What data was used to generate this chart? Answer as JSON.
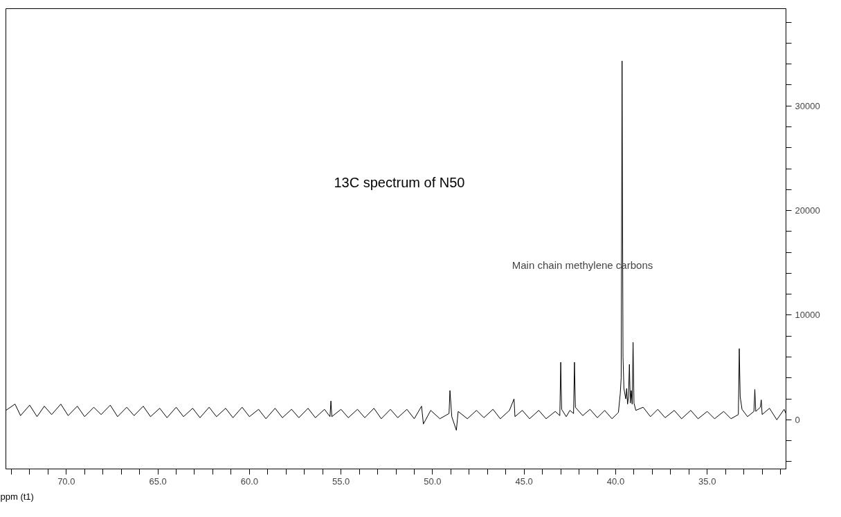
{
  "chart_data": {
    "type": "line",
    "title": "13C spectrum of N50",
    "xlabel": "ppm (t1)",
    "annotations": [
      "Main chain methylene carbons"
    ],
    "x": [
      73.3,
      72.8,
      72.5,
      72.0,
      71.6,
      71.2,
      70.8,
      70.3,
      69.9,
      69.4,
      69.0,
      68.5,
      68.1,
      67.6,
      67.2,
      66.7,
      66.3,
      65.8,
      65.4,
      64.9,
      64.5,
      64.0,
      63.6,
      63.1,
      62.7,
      62.2,
      61.8,
      61.3,
      60.9,
      60.4,
      60.0,
      59.5,
      59.1,
      58.6,
      58.2,
      57.7,
      57.3,
      56.8,
      56.4,
      55.9,
      55.6,
      55.55,
      55.5,
      55.0,
      54.6,
      54.1,
      53.7,
      53.2,
      52.8,
      52.3,
      51.9,
      51.4,
      51.0,
      50.6,
      50.5,
      50.1,
      49.6,
      49.1,
      49.05,
      48.95,
      48.7,
      48.6,
      48.1,
      47.6,
      47.2,
      46.7,
      46.3,
      45.8,
      45.55,
      45.5,
      45.1,
      44.7,
      44.2,
      43.8,
      43.3,
      43.05,
      43.0,
      42.95,
      42.7,
      42.5,
      42.3,
      42.25,
      42.2,
      41.8,
      41.4,
      41.0,
      40.6,
      40.2,
      39.85,
      39.75,
      39.7,
      39.65,
      39.6,
      39.55,
      39.45,
      39.4,
      39.35,
      39.3,
      39.25,
      39.2,
      39.15,
      39.1,
      39.05,
      39.0,
      38.9,
      38.5,
      38.1,
      37.7,
      37.3,
      36.8,
      36.4,
      35.9,
      35.5,
      35.0,
      34.6,
      34.1,
      33.7,
      33.3,
      33.25,
      33.2,
      33.1,
      32.8,
      32.45,
      32.4,
      32.35,
      32.1,
      32.05,
      32.0,
      31.6,
      31.2,
      30.8,
      30.7
    ],
    "series": [
      {
        "color": "#000000",
        "values": [
          900,
          1500,
          400,
          1400,
          300,
          1300,
          500,
          1500,
          400,
          1300,
          300,
          1200,
          500,
          1400,
          300,
          1200,
          400,
          1300,
          300,
          1100,
          200,
          1200,
          300,
          1100,
          200,
          1200,
          300,
          1100,
          200,
          1200,
          300,
          1000,
          100,
          1100,
          200,
          1000,
          200,
          1100,
          200,
          1000,
          300,
          1800,
          300,
          1000,
          200,
          1000,
          200,
          1100,
          100,
          1000,
          200,
          1000,
          100,
          1300,
          -400,
          900,
          100,
          600,
          2800,
          300,
          -1000,
          800,
          100,
          900,
          200,
          1000,
          100,
          900,
          2000,
          300,
          900,
          100,
          900,
          100,
          800,
          400,
          5500,
          1000,
          300,
          900,
          600,
          5500,
          1200,
          400,
          1000,
          200,
          900,
          100,
          700,
          2500,
          4000,
          34300,
          6000,
          3000,
          2000,
          3000,
          1500,
          2200,
          5300,
          1600,
          2800,
          1500,
          7400,
          1600,
          900,
          1200,
          300,
          1000,
          200,
          900,
          100,
          900,
          100,
          800,
          100,
          800,
          100,
          500,
          6800,
          2200,
          1000,
          300,
          800,
          2900,
          800,
          1200,
          1900,
          500,
          1100,
          0,
          1000,
          600
        ]
      }
    ],
    "xlim": [
      73.3,
      30.7
    ],
    "ylim": [
      -4700,
      39300
    ],
    "xticks": [
      {
        "value": 73,
        "label": null
      },
      {
        "value": 72,
        "label": null
      },
      {
        "value": 71,
        "label": null
      },
      {
        "value": 70,
        "label": "70.0"
      },
      {
        "value": 69,
        "label": null
      },
      {
        "value": 68,
        "label": null
      },
      {
        "value": 67,
        "label": null
      },
      {
        "value": 66,
        "label": null
      },
      {
        "value": 65,
        "label": "65.0"
      },
      {
        "value": 64,
        "label": null
      },
      {
        "value": 63,
        "label": null
      },
      {
        "value": 62,
        "label": null
      },
      {
        "value": 61,
        "label": null
      },
      {
        "value": 60,
        "label": "60.0"
      },
      {
        "value": 59,
        "label": null
      },
      {
        "value": 58,
        "label": null
      },
      {
        "value": 57,
        "label": null
      },
      {
        "value": 56,
        "label": null
      },
      {
        "value": 55,
        "label": "55.0"
      },
      {
        "value": 54,
        "label": null
      },
      {
        "value": 53,
        "label": null
      },
      {
        "value": 52,
        "label": null
      },
      {
        "value": 51,
        "label": null
      },
      {
        "value": 50,
        "label": "50.0"
      },
      {
        "value": 49,
        "label": null
      },
      {
        "value": 48,
        "label": null
      },
      {
        "value": 47,
        "label": null
      },
      {
        "value": 46,
        "label": null
      },
      {
        "value": 45,
        "label": "45.0"
      },
      {
        "value": 44,
        "label": null
      },
      {
        "value": 43,
        "label": null
      },
      {
        "value": 42,
        "label": null
      },
      {
        "value": 41,
        "label": null
      },
      {
        "value": 40,
        "label": "40.0"
      },
      {
        "value": 39,
        "label": null
      },
      {
        "value": 38,
        "label": null
      },
      {
        "value": 37,
        "label": null
      },
      {
        "value": 36,
        "label": null
      },
      {
        "value": 35,
        "label": "35.0"
      },
      {
        "value": 34,
        "label": null
      },
      {
        "value": 33,
        "label": null
      },
      {
        "value": 32,
        "label": null
      },
      {
        "value": 31,
        "label": null
      }
    ],
    "yticks": [
      {
        "value": -4000,
        "label": null
      },
      {
        "value": -2000,
        "label": null
      },
      0,
      {
        "value": 2000,
        "label": null
      },
      {
        "value": 4000,
        "label": null
      },
      {
        "value": 6000,
        "label": null
      },
      {
        "value": 8000,
        "label": null
      },
      10000,
      {
        "value": 12000,
        "label": null
      },
      {
        "value": 14000,
        "label": null
      },
      {
        "value": 16000,
        "label": null
      },
      {
        "value": 18000,
        "label": null
      },
      20000,
      {
        "value": 22000,
        "label": null
      },
      {
        "value": 24000,
        "label": null
      },
      {
        "value": 26000,
        "label": null
      },
      {
        "value": 28000,
        "label": null
      },
      30000,
      {
        "value": 32000,
        "label": null
      },
      {
        "value": 34000,
        "label": null
      },
      {
        "value": 36000,
        "label": null
      },
      {
        "value": 38000,
        "label": null
      }
    ],
    "grid": false,
    "marker": "none",
    "line_style": "solid"
  }
}
